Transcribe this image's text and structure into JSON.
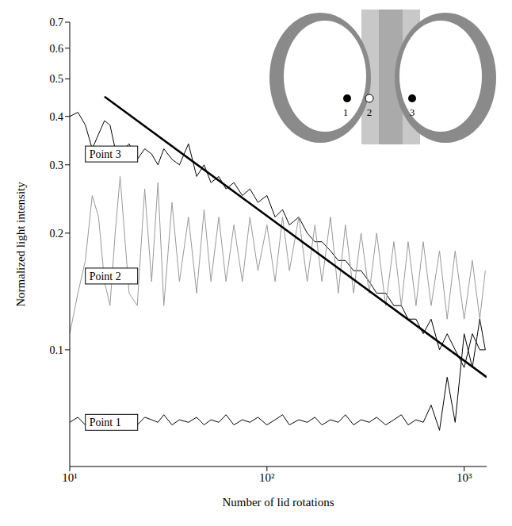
{
  "chart_data": {
    "type": "line",
    "log": true,
    "grid": false,
    "x_label": "Number of lid rotations",
    "y_label": "Normalized light intensity",
    "xlim": [
      10,
      1300
    ],
    "ylim": [
      0.05,
      0.7
    ],
    "xticks": [
      {
        "value": 10,
        "label": "10¹"
      },
      {
        "value": 100,
        "label": "10²"
      },
      {
        "value": 1000,
        "label": "10³"
      }
    ],
    "yticks": [
      0.1,
      0.2,
      0.3,
      0.4,
      0.5,
      0.6,
      0.7
    ],
    "x": [
      10,
      11,
      12,
      13,
      14,
      15,
      16,
      17,
      18,
      20,
      22,
      24,
      26,
      28,
      30,
      33,
      36,
      40,
      44,
      48,
      52,
      57,
      62,
      68,
      75,
      82,
      90,
      100,
      110,
      120,
      130,
      145,
      160,
      175,
      190,
      210,
      230,
      250,
      275,
      300,
      330,
      360,
      400,
      440,
      480,
      520,
      570,
      620,
      680,
      750,
      820,
      900,
      1000,
      1100,
      1200,
      1280
    ],
    "series": [
      {
        "name": "Point 3",
        "color": "#000000",
        "values": [
          0.4,
          0.41,
          0.38,
          0.33,
          0.36,
          0.39,
          0.38,
          0.33,
          0.32,
          0.34,
          0.31,
          0.33,
          0.32,
          0.3,
          0.33,
          0.31,
          0.3,
          0.34,
          0.28,
          0.3,
          0.27,
          0.28,
          0.26,
          0.27,
          0.25,
          0.26,
          0.24,
          0.25,
          0.22,
          0.23,
          0.21,
          0.22,
          0.2,
          0.19,
          0.19,
          0.18,
          0.17,
          0.17,
          0.16,
          0.16,
          0.15,
          0.14,
          0.14,
          0.13,
          0.13,
          0.12,
          0.12,
          0.11,
          0.12,
          0.1,
          0.11,
          0.1,
          0.09,
          0.11,
          0.1,
          0.1
        ]
      },
      {
        "name": "Point 2",
        "color": "#999999",
        "values": [
          0.11,
          0.14,
          0.17,
          0.25,
          0.22,
          0.15,
          0.13,
          0.2,
          0.28,
          0.14,
          0.13,
          0.26,
          0.15,
          0.27,
          0.13,
          0.24,
          0.15,
          0.22,
          0.14,
          0.23,
          0.15,
          0.22,
          0.15,
          0.21,
          0.15,
          0.22,
          0.16,
          0.21,
          0.15,
          0.22,
          0.16,
          0.22,
          0.15,
          0.21,
          0.15,
          0.22,
          0.14,
          0.21,
          0.14,
          0.2,
          0.14,
          0.2,
          0.13,
          0.19,
          0.13,
          0.19,
          0.13,
          0.19,
          0.13,
          0.18,
          0.12,
          0.18,
          0.12,
          0.17,
          0.12,
          0.16
        ]
      },
      {
        "name": "Point 1",
        "color": "#000000",
        "values": [
          0.065,
          0.067,
          0.064,
          0.066,
          0.065,
          0.068,
          0.064,
          0.066,
          0.067,
          0.065,
          0.064,
          0.067,
          0.066,
          0.065,
          0.068,
          0.064,
          0.066,
          0.065,
          0.067,
          0.064,
          0.066,
          0.065,
          0.068,
          0.064,
          0.066,
          0.065,
          0.067,
          0.064,
          0.066,
          0.068,
          0.064,
          0.066,
          0.065,
          0.067,
          0.064,
          0.066,
          0.065,
          0.068,
          0.064,
          0.066,
          0.065,
          0.067,
          0.064,
          0.066,
          0.068,
          0.064,
          0.066,
          0.065,
          0.072,
          0.062,
          0.085,
          0.065,
          0.11,
          0.09,
          0.12,
          0.1
        ]
      }
    ],
    "fit_line": {
      "x": [
        15,
        1300
      ],
      "values": [
        0.45,
        0.085
      ],
      "color": "#000000"
    },
    "annotations": [
      {
        "text": "Point 3",
        "x": 12,
        "y": 0.32
      },
      {
        "text": "Point 2",
        "x": 12,
        "y": 0.155
      },
      {
        "text": "Point 1",
        "x": 12,
        "y": 0.065
      }
    ],
    "inset": {
      "labels": [
        "1",
        "2",
        "3"
      ]
    }
  }
}
